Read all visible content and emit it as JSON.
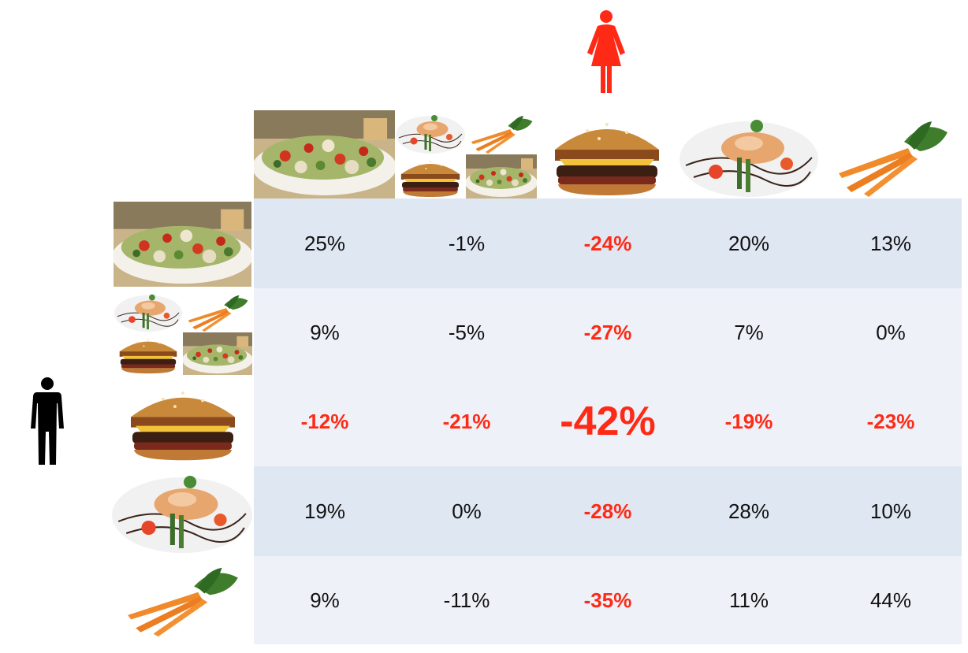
{
  "female_color": "#ff2a16",
  "male_color": "#000000",
  "row_fill_dark": "#dfe7f3",
  "row_fill_light": "#eef2f8",
  "columns": [
    "salad",
    "mixed",
    "burger",
    "fish",
    "carrots"
  ],
  "rows": [
    "salad",
    "mixed",
    "burger",
    "fish",
    "carrots"
  ],
  "cells": [
    [
      {
        "text": "25%",
        "neg": false
      },
      {
        "text": "-1%",
        "neg": false
      },
      {
        "text": "-24%",
        "neg": true
      },
      {
        "text": "20%",
        "neg": false
      },
      {
        "text": "13%",
        "neg": false
      }
    ],
    [
      {
        "text": "9%",
        "neg": false
      },
      {
        "text": "-5%",
        "neg": false
      },
      {
        "text": "-27%",
        "neg": true
      },
      {
        "text": "7%",
        "neg": false
      },
      {
        "text": "0%",
        "neg": false
      }
    ],
    [
      {
        "text": "-12%",
        "neg": true
      },
      {
        "text": "-21%",
        "neg": true
      },
      {
        "text": "-42%",
        "neg": true,
        "big": true
      },
      {
        "text": "-19%",
        "neg": true
      },
      {
        "text": "-23%",
        "neg": true
      }
    ],
    [
      {
        "text": "19%",
        "neg": false
      },
      {
        "text": "0%",
        "neg": false
      },
      {
        "text": "-28%",
        "neg": true
      },
      {
        "text": "28%",
        "neg": false
      },
      {
        "text": "10%",
        "neg": false
      }
    ],
    [
      {
        "text": "9%",
        "neg": false
      },
      {
        "text": "-11%",
        "neg": false
      },
      {
        "text": "-35%",
        "neg": true
      },
      {
        "text": "11%",
        "neg": false
      },
      {
        "text": "44%",
        "neg": false
      }
    ]
  ]
}
